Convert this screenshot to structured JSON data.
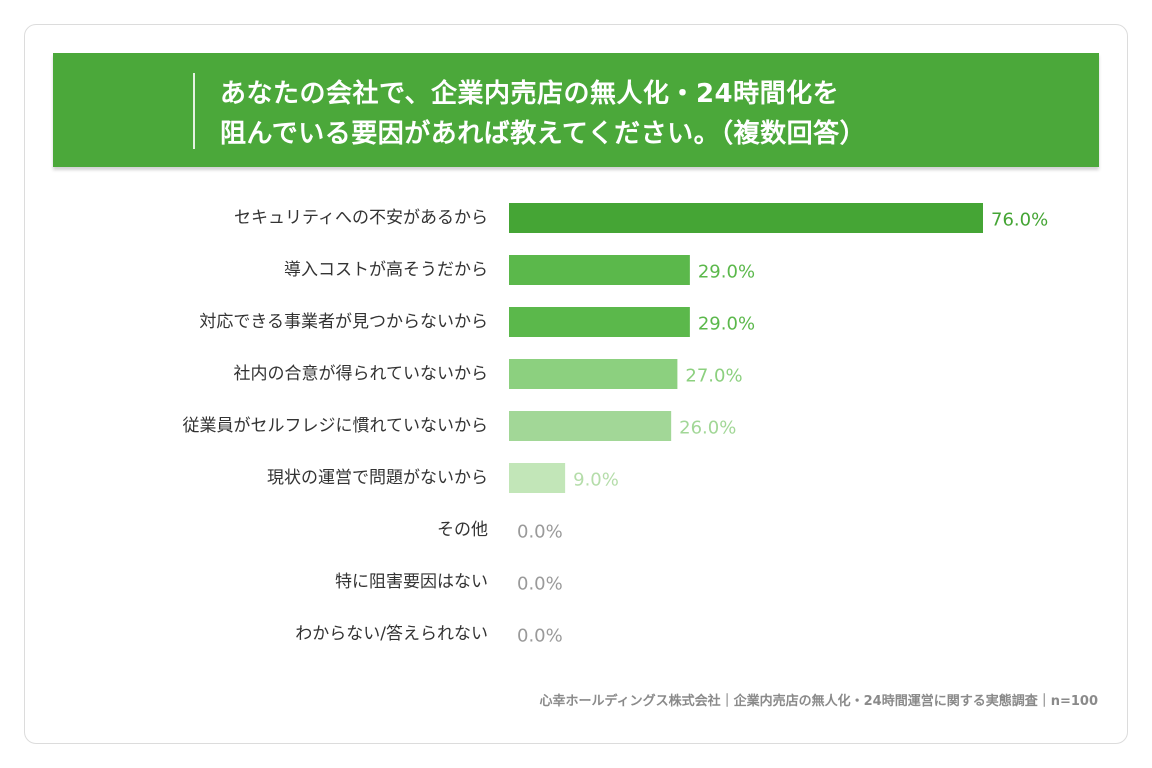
{
  "title_lines": [
    "あなたの会社で、企業内売店の無人化・24時間化を",
    "阻んでいる要因があれば教えてください。（複数回答）"
  ],
  "footer": "心幸ホールディングス株式会社｜企業内売店の無人化・24時間運営に関する実態調査｜n=100",
  "colors": {
    "banner": "#4ba83a",
    "bars": [
      "#45a535",
      "#5bb84b",
      "#5bb84b",
      "#8cd07f",
      "#a2d797",
      "#c2e6b8",
      "#c2e6b8",
      "#c2e6b8",
      "#c2e6b8"
    ],
    "labels": [
      "#45a535",
      "#5bb84b",
      "#5bb84b",
      "#8cd07f",
      "#a2d797",
      "#b5ddaa",
      "#9a9a9a",
      "#9a9a9a",
      "#9a9a9a"
    ],
    "category_text": "#333333"
  },
  "chart_data": {
    "type": "bar",
    "orientation": "horizontal",
    "unit": "%",
    "categories": [
      "セキュリティへの不安があるから",
      "導入コストが高そうだから",
      "対応できる事業者が見つからないから",
      "社内の合意が得られていないから",
      "従業員がセルフレジに慣れていないから",
      "現状の運営で問題がないから",
      "その他",
      "特に阻害要因はない",
      "わからない/答えられない"
    ],
    "values": [
      76.0,
      29.0,
      29.0,
      27.0,
      26.0,
      9.0,
      0.0,
      0.0,
      0.0
    ],
    "value_labels": [
      "76.0%",
      "29.0%",
      "29.0%",
      "27.0%",
      "26.0%",
      "9.0%",
      "0.0%",
      "0.0%",
      "0.0%"
    ],
    "xlim": [
      0,
      76
    ],
    "grid": false,
    "legend": "none"
  }
}
